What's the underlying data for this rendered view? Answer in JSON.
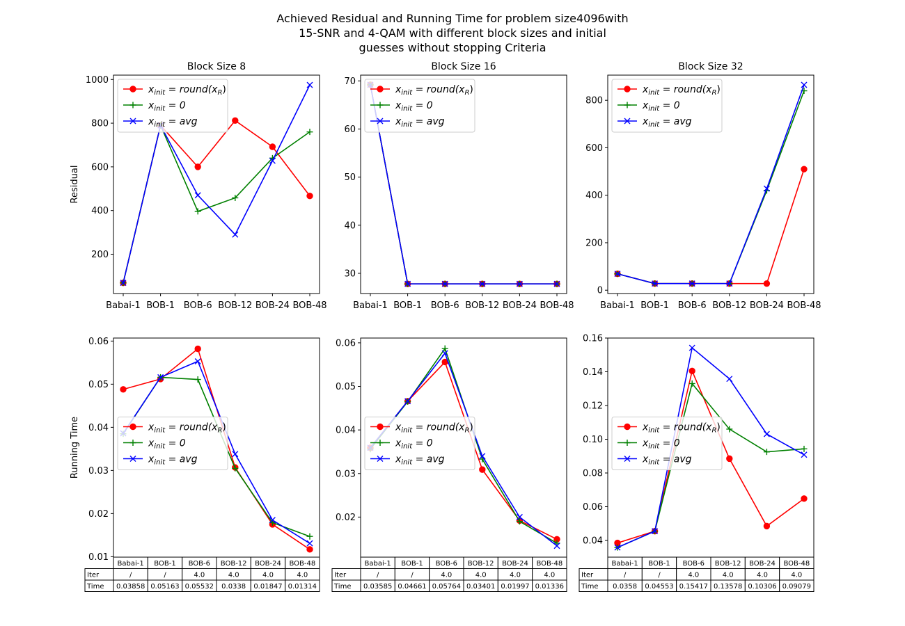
{
  "figure": {
    "title_lines": [
      "Achieved Residual and Running Time for problem size4096with",
      "15-SNR and 4-QAM with different block sizes and initial",
      "guesses without stopping Criteria"
    ]
  },
  "legend": {
    "entries": [
      {
        "prefix": "x",
        "sub": "init",
        "rhs": " = round(x",
        "rhs_sub": "R",
        "rhs_end": ")",
        "color": "#ff0000",
        "marker": "circle"
      },
      {
        "prefix": "x",
        "sub": "init",
        "rhs": " = 0",
        "rhs_sub": "",
        "rhs_end": "",
        "color": "#008000",
        "marker": "plus"
      },
      {
        "prefix": "x",
        "sub": "init",
        "rhs": " = avg",
        "rhs_sub": "",
        "rhs_end": "",
        "color": "#0000ff",
        "marker": "x"
      }
    ]
  },
  "chart_data": [
    {
      "type": "line",
      "title": "Block Size 8",
      "ylabel": "Residual",
      "categories": [
        "Babai-1",
        "BOB-1",
        "BOB-6",
        "BOB-12",
        "BOB-24",
        "BOB-48"
      ],
      "ylim": [
        20,
        1020
      ],
      "yticks": [
        200,
        400,
        600,
        800,
        1000
      ],
      "legend_position": "upper left",
      "series": [
        {
          "name": "round",
          "color": "#ff0000",
          "marker": "circle",
          "values": [
            69,
            790,
            600,
            812,
            692,
            467
          ]
        },
        {
          "name": "zero",
          "color": "#008000",
          "marker": "plus",
          "values": [
            69,
            790,
            396,
            458,
            640,
            760
          ]
        },
        {
          "name": "avg",
          "color": "#0000ff",
          "marker": "x",
          "values": [
            69,
            790,
            470,
            290,
            628,
            975
          ]
        }
      ]
    },
    {
      "type": "line",
      "title": "Block Size 16",
      "ylabel": "",
      "categories": [
        "Babai-1",
        "BOB-1",
        "BOB-6",
        "BOB-12",
        "BOB-24",
        "BOB-48"
      ],
      "ylim": [
        25.8,
        71.2
      ],
      "yticks": [
        30,
        40,
        50,
        60,
        70
      ],
      "legend_position": "upper left",
      "series": [
        {
          "name": "round",
          "color": "#ff0000",
          "marker": "circle",
          "values": [
            69.2,
            27.8,
            27.8,
            27.8,
            27.8,
            27.8
          ]
        },
        {
          "name": "zero",
          "color": "#008000",
          "marker": "plus",
          "values": [
            69.2,
            27.8,
            27.8,
            27.8,
            27.8,
            27.8
          ]
        },
        {
          "name": "avg",
          "color": "#0000ff",
          "marker": "x",
          "values": [
            69.2,
            27.8,
            27.8,
            27.8,
            27.8,
            27.8
          ]
        }
      ]
    },
    {
      "type": "line",
      "title": "Block Size 32",
      "ylabel": "",
      "categories": [
        "Babai-1",
        "BOB-1",
        "BOB-6",
        "BOB-12",
        "BOB-24",
        "BOB-48"
      ],
      "ylim": [
        -14,
        906
      ],
      "yticks": [
        0,
        200,
        400,
        600,
        800
      ],
      "legend_position": "upper left",
      "series": [
        {
          "name": "round",
          "color": "#ff0000",
          "marker": "circle",
          "values": [
            69,
            28,
            28,
            28,
            28,
            510
          ]
        },
        {
          "name": "zero",
          "color": "#008000",
          "marker": "plus",
          "values": [
            69,
            28,
            28,
            28,
            420,
            840
          ]
        },
        {
          "name": "avg",
          "color": "#0000ff",
          "marker": "x",
          "values": [
            69,
            28,
            28,
            28,
            428,
            865
          ]
        }
      ]
    },
    {
      "type": "line",
      "title": "",
      "ylabel": "Running Time",
      "categories": [
        "Babai-1",
        "BOB-1",
        "BOB-6",
        "BOB-12",
        "BOB-24",
        "BOB-48"
      ],
      "ylim": [
        0.0099,
        0.0607
      ],
      "yticks": [
        0.01,
        0.02,
        0.03,
        0.04,
        0.05,
        0.06
      ],
      "legend_position": "center left",
      "series": [
        {
          "name": "round",
          "color": "#ff0000",
          "marker": "circle",
          "values": [
            0.0488,
            0.0512,
            0.0582,
            0.0307,
            0.0175,
            0.0117
          ]
        },
        {
          "name": "zero",
          "color": "#008000",
          "marker": "plus",
          "values": [
            0.0385,
            0.0516,
            0.0511,
            0.0305,
            0.0179,
            0.0147
          ]
        },
        {
          "name": "avg",
          "color": "#0000ff",
          "marker": "x",
          "values": [
            0.0386,
            0.0516,
            0.0553,
            0.0338,
            0.0185,
            0.0131
          ]
        }
      ],
      "table": {
        "row_labels": [
          "Iter",
          "Time"
        ],
        "columns": [
          "Babai-1",
          "BOB-1",
          "BOB-6",
          "BOB-12",
          "BOB-24",
          "BOB-48"
        ],
        "rows": [
          [
            "/",
            "/",
            "4.0",
            "4.0",
            "4.0",
            "4.0"
          ],
          [
            "0.03858",
            "0.05163",
            "0.05532",
            "0.0338",
            "0.01847",
            "0.01314"
          ]
        ]
      }
    },
    {
      "type": "line",
      "title": "",
      "ylabel": "",
      "categories": [
        "Babai-1",
        "BOB-1",
        "BOB-6",
        "BOB-12",
        "BOB-24",
        "BOB-48"
      ],
      "ylim": [
        0.0108,
        0.0611
      ],
      "yticks": [
        0.02,
        0.03,
        0.04,
        0.05,
        0.06
      ],
      "legend_position": "center left",
      "series": [
        {
          "name": "round",
          "color": "#ff0000",
          "marker": "circle",
          "values": [
            0.0359,
            0.0466,
            0.0556,
            0.0309,
            0.0192,
            0.0149
          ]
        },
        {
          "name": "zero",
          "color": "#008000",
          "marker": "plus",
          "values": [
            0.0356,
            0.0465,
            0.0587,
            0.0333,
            0.019,
            0.014
          ]
        },
        {
          "name": "avg",
          "color": "#0000ff",
          "marker": "x",
          "values": [
            0.0359,
            0.0466,
            0.0576,
            0.034,
            0.02,
            0.0134
          ]
        }
      ],
      "table": {
        "row_labels": [
          "Iter",
          "Time"
        ],
        "columns": [
          "Babai-1",
          "BOB-1",
          "BOB-6",
          "BOB-12",
          "BOB-24",
          "BOB-48"
        ],
        "rows": [
          [
            "/",
            "/",
            "4.0",
            "4.0",
            "4.0",
            "4.0"
          ],
          [
            "0.03585",
            "0.04661",
            "0.05764",
            "0.03401",
            "0.01997",
            "0.01336"
          ]
        ]
      }
    },
    {
      "type": "line",
      "title": "",
      "ylabel": "",
      "categories": [
        "Babai-1",
        "BOB-1",
        "BOB-6",
        "BOB-12",
        "BOB-24",
        "BOB-48"
      ],
      "ylim": [
        0.0301,
        0.16
      ],
      "yticks": [
        0.04,
        0.06,
        0.08,
        0.1,
        0.12,
        0.14,
        0.16
      ],
      "legend_position": "center left",
      "series": [
        {
          "name": "round",
          "color": "#ff0000",
          "marker": "circle",
          "values": [
            0.0385,
            0.0455,
            0.1405,
            0.0885,
            0.0485,
            0.0648
          ]
        },
        {
          "name": "zero",
          "color": "#008000",
          "marker": "plus",
          "values": [
            0.0358,
            0.0455,
            0.133,
            0.106,
            0.0925,
            0.0943
          ]
        },
        {
          "name": "avg",
          "color": "#0000ff",
          "marker": "x",
          "values": [
            0.0358,
            0.0455,
            0.1542,
            0.1358,
            0.1031,
            0.0908
          ]
        }
      ],
      "table": {
        "row_labels": [
          "Iter",
          "Time"
        ],
        "columns": [
          "Babai-1",
          "BOB-1",
          "BOB-6",
          "BOB-12",
          "BOB-24",
          "BOB-48"
        ],
        "rows": [
          [
            "/",
            "/",
            "4.0",
            "4.0",
            "4.0",
            "4.0"
          ],
          [
            "0.0358",
            "0.04553",
            "0.15417",
            "0.13578",
            "0.10306",
            "0.09079"
          ]
        ]
      }
    }
  ]
}
